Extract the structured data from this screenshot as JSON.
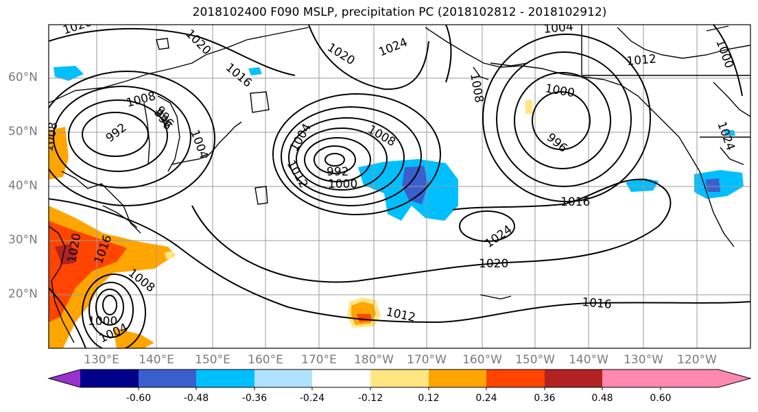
{
  "title": "2018102400 F090 MSLP, precipitation PC (2018102812 - 2018102912)",
  "lat_labels": [
    "60°N",
    "50°N",
    "40°N",
    "30°N",
    "20°N"
  ],
  "lon_labels": [
    "130°E",
    "140°E",
    "150°E",
    "160°E",
    "170°E",
    "180°W",
    "170°W",
    "160°W",
    "150°W",
    "140°W",
    "130°W",
    "120°W"
  ],
  "isobar_labels": [
    "1020",
    "1020",
    "1016",
    "1020",
    "1024",
    "1004",
    "1012",
    "1000",
    "1008",
    "992",
    "996",
    "1008",
    "1004",
    "1008",
    "1004",
    "1012",
    "992",
    "1000",
    "1008",
    "996",
    "1000",
    "996",
    "1016",
    "1024",
    "1020",
    "1020",
    "1016",
    "1008",
    "1016",
    "1012",
    "1000",
    "1004",
    "1024"
  ],
  "colorbar": {
    "colors": [
      "#9932cc",
      "#00008b",
      "#3a5fcd",
      "#00bfff",
      "#b0e2ff",
      "#ffffff",
      "#ffe680",
      "#ffa500",
      "#ff4500",
      "#b22222",
      "#ff88b0"
    ],
    "tick_labels": [
      "-0.60",
      "-0.48",
      "-0.36",
      "-0.24",
      "-0.12",
      "0.12",
      "0.24",
      "0.36",
      "0.48",
      "0.60"
    ]
  }
}
